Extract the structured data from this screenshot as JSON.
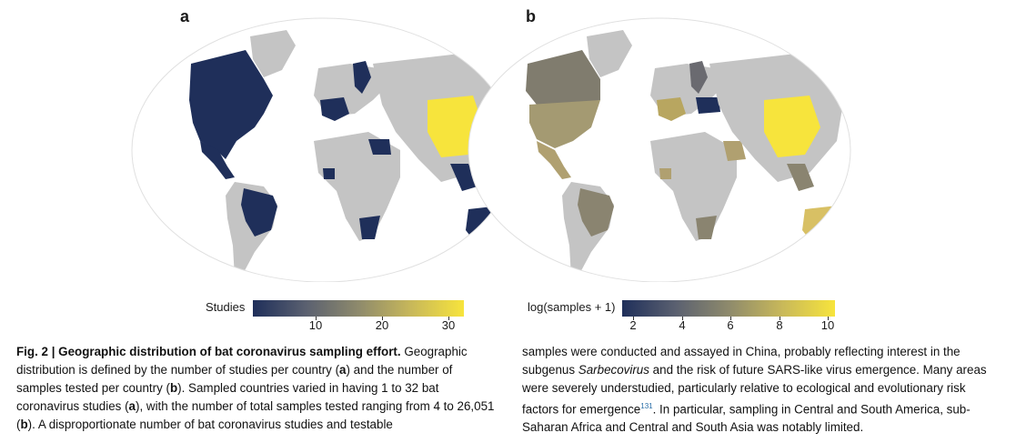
{
  "panels": {
    "a": {
      "letter": "a",
      "colorbar_label": "Studies",
      "ticks": [
        "10",
        "20",
        "30"
      ]
    },
    "b": {
      "letter": "b",
      "colorbar_label": "log(samples + 1)",
      "ticks": [
        "2",
        "4",
        "6",
        "8",
        "10"
      ]
    }
  },
  "colors": {
    "land_gray": "#c4c4c4",
    "ocean": "#ffffff",
    "dark_navy": "#1f2f5a",
    "yellow": "#f7e43c",
    "olive": "#8c8670",
    "tan": "#b0a070"
  },
  "caption": {
    "fig_label": "Fig. 2 | Geographic distribution of bat coronavirus sampling effort.",
    "col1_rest": " Geographic distribution is defined by the number of studies per country (",
    "a1": "a",
    "col1_mid": ") and the number of samples tested per country (",
    "b1": "b",
    "col1_mid2": "). Sampled countries varied in having 1 to 32 bat coronavirus studies (",
    "a2": "a",
    "col1_mid3": "), with the number of total samples tested ranging from 4 to 26,051 (",
    "b2": "b",
    "col1_end": "). A disproportionate number of bat coronavirus studies and testable",
    "col2_start": "samples were conducted and assayed in China, probably reflecting interest in the subgenus ",
    "col2_italic": "Sarbecovirus",
    "col2_mid": " and the risk of future SARS-like virus emergence. Many areas were severely understudied, particularly relative to ecological and evolutionary risk factors for emergence",
    "col2_ref": "131",
    "col2_end": ". In particular, sampling in Central and South America, sub-Saharan Africa and Central and South Asia was notably limited."
  }
}
